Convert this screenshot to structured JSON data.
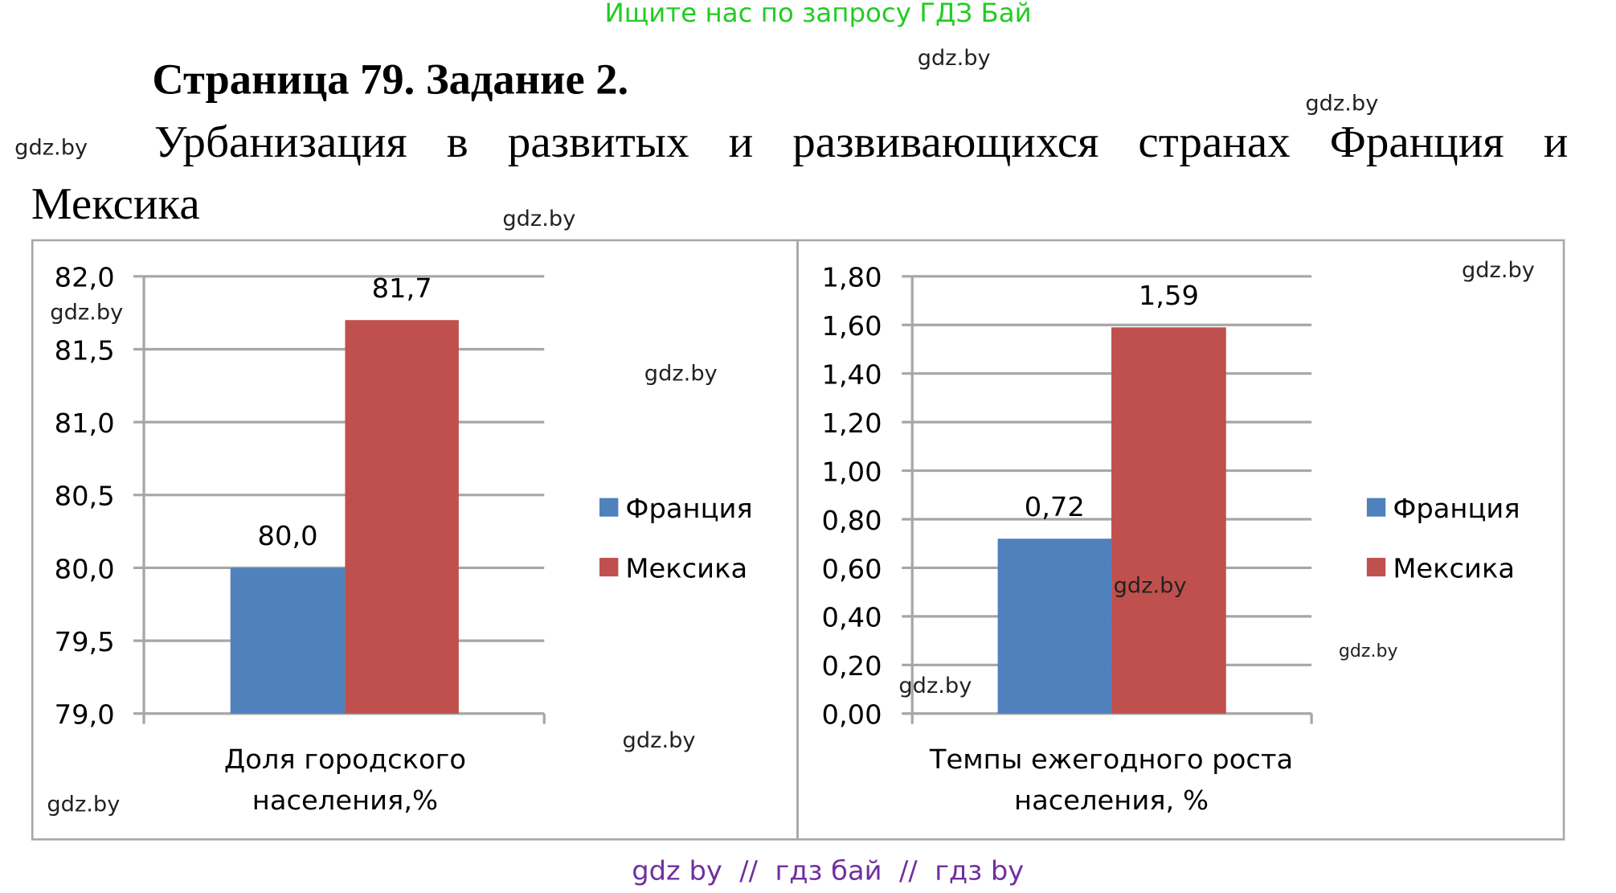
{
  "header_banner": "Ищите нас по запросу ГДЗ Бай",
  "heading": "Страница 79. Задание 2.",
  "subtitle_line1": [
    "Урбанизация",
    "в",
    "развитых",
    "и",
    "развивающихся",
    "странах",
    "Франция",
    "и"
  ],
  "subtitle_line2": "Мексика",
  "watermark": "gdz.by",
  "footer": "gdz by  //  гдз бай  //  гдз by",
  "colors": {
    "france": "#4f81bd",
    "mexico": "#c0504d",
    "grid": "#a6a6a6",
    "banner": "#22cc22",
    "footer": "#7030a0"
  },
  "chart_data": [
    {
      "type": "bar",
      "categories": [
        "Доля городского населения,%"
      ],
      "xlabel_lines": [
        "Доля городского",
        "населения,%"
      ],
      "series": [
        {
          "name": "Франция",
          "values": [
            80.0
          ]
        },
        {
          "name": "Мексика",
          "values": [
            81.7
          ]
        }
      ],
      "data_labels": [
        "80,0",
        "81,7"
      ],
      "ylim": [
        79.0,
        82.0
      ],
      "yticks": [
        "79,0",
        "79,5",
        "80,0",
        "80,5",
        "81,0",
        "81,5",
        "82,0"
      ],
      "grid": true,
      "legend": "right"
    },
    {
      "type": "bar",
      "categories": [
        "Темпы ежегодного роста населения, %"
      ],
      "xlabel_lines": [
        "Темпы ежегодного роста",
        "населения, %"
      ],
      "series": [
        {
          "name": "Франция",
          "values": [
            0.72
          ]
        },
        {
          "name": "Мексика",
          "values": [
            1.59
          ]
        }
      ],
      "data_labels": [
        "0,72",
        "1,59"
      ],
      "ylim": [
        0,
        1.8
      ],
      "yticks": [
        "0,00",
        "0,20",
        "0,40",
        "0,60",
        "0,80",
        "1,00",
        "1,20",
        "1,40",
        "1,60",
        "1,80"
      ],
      "grid": true,
      "legend": "right"
    }
  ]
}
